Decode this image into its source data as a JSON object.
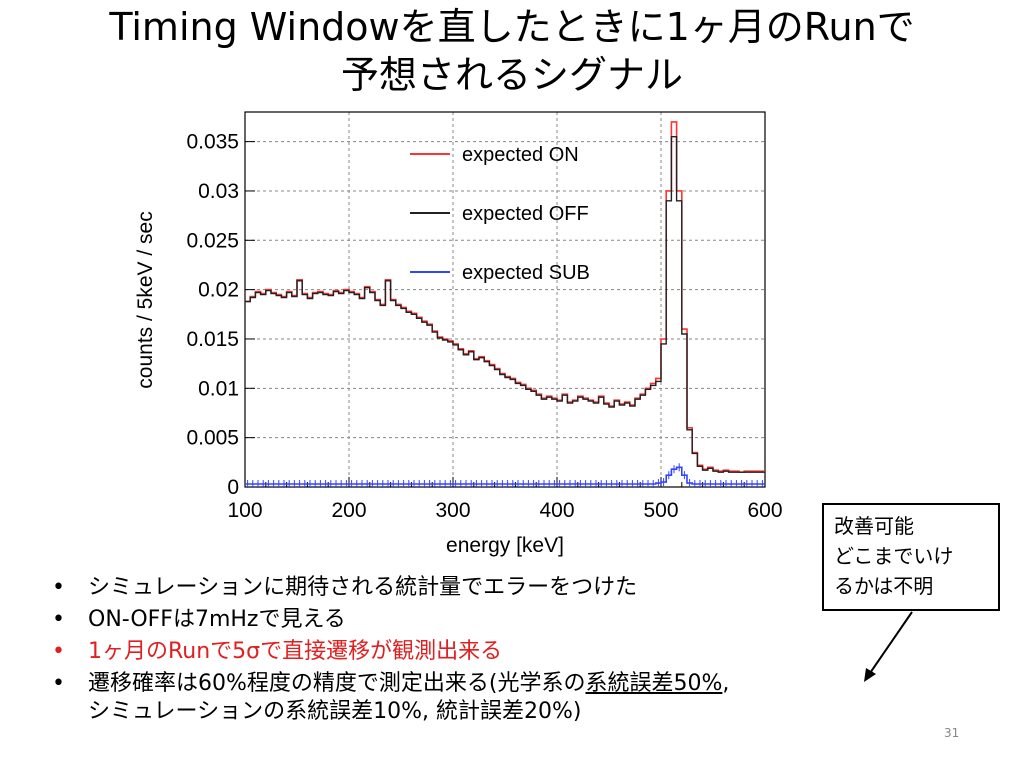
{
  "title": {
    "line1": "Timing Windowを直したときに1ヶ月のRunで",
    "line2": "予想されるシグナル"
  },
  "chart_data": {
    "type": "line",
    "xlabel": "energy [keV]",
    "ylabel": "counts / 5keV / sec",
    "xlim": [
      100,
      600
    ],
    "ylim": [
      0,
      0.038
    ],
    "x_ticks": [
      "100",
      "200",
      "300",
      "400",
      "500",
      "600"
    ],
    "y_ticks": [
      "0",
      "0.005",
      "0.01",
      "0.015",
      "0.02",
      "0.025",
      "0.03",
      "0.035"
    ],
    "grid": true,
    "legend_position": "top-right",
    "x": [
      100,
      105,
      110,
      115,
      120,
      125,
      130,
      135,
      140,
      145,
      150,
      155,
      160,
      165,
      170,
      175,
      180,
      185,
      190,
      195,
      200,
      205,
      210,
      215,
      220,
      225,
      230,
      235,
      240,
      245,
      250,
      255,
      260,
      265,
      270,
      275,
      280,
      285,
      290,
      295,
      300,
      305,
      310,
      315,
      320,
      325,
      330,
      335,
      340,
      345,
      350,
      355,
      360,
      365,
      370,
      375,
      380,
      385,
      390,
      395,
      400,
      405,
      410,
      415,
      420,
      425,
      430,
      435,
      440,
      445,
      450,
      455,
      460,
      465,
      470,
      475,
      480,
      485,
      490,
      495,
      500,
      505,
      510,
      515,
      520,
      525,
      530,
      535,
      540,
      545,
      550,
      555,
      560,
      565,
      570,
      575,
      580,
      585,
      590,
      595,
      600
    ],
    "series": [
      {
        "name": "expected ON",
        "color": "#ff3333",
        "values": [
          0.0188,
          0.0193,
          0.0198,
          0.0196,
          0.02,
          0.0197,
          0.0195,
          0.0193,
          0.0198,
          0.0194,
          0.021,
          0.0196,
          0.0192,
          0.0197,
          0.0198,
          0.0196,
          0.0195,
          0.0199,
          0.0197,
          0.02,
          0.0198,
          0.0196,
          0.0192,
          0.0203,
          0.0198,
          0.019,
          0.0185,
          0.021,
          0.019,
          0.0185,
          0.0182,
          0.0178,
          0.0176,
          0.0172,
          0.0168,
          0.0165,
          0.0158,
          0.0152,
          0.015,
          0.0148,
          0.0145,
          0.014,
          0.0135,
          0.0138,
          0.013,
          0.0132,
          0.0128,
          0.0124,
          0.012,
          0.0115,
          0.0112,
          0.011,
          0.0106,
          0.0104,
          0.01,
          0.0098,
          0.0094,
          0.009,
          0.0092,
          0.009,
          0.0088,
          0.0094,
          0.0086,
          0.0088,
          0.0092,
          0.009,
          0.0088,
          0.0086,
          0.0092,
          0.0085,
          0.0082,
          0.0088,
          0.0084,
          0.0086,
          0.0083,
          0.009,
          0.0094,
          0.01,
          0.0105,
          0.011,
          0.015,
          0.03,
          0.037,
          0.03,
          0.016,
          0.006,
          0.0035,
          0.0022,
          0.0018,
          0.002,
          0.0017,
          0.0016,
          0.0017,
          0.0016,
          0.0016,
          0.0015,
          0.0016,
          0.0016,
          0.0016,
          0.0016,
          0.0016
        ]
      },
      {
        "name": "expected OFF",
        "color": "#222222",
        "values": [
          0.0188,
          0.0192,
          0.0197,
          0.0195,
          0.0199,
          0.0196,
          0.0194,
          0.0192,
          0.0197,
          0.0193,
          0.0209,
          0.0195,
          0.0191,
          0.0196,
          0.0197,
          0.0195,
          0.0194,
          0.0198,
          0.0196,
          0.0199,
          0.0197,
          0.0195,
          0.0191,
          0.0202,
          0.0197,
          0.0189,
          0.0184,
          0.0209,
          0.0189,
          0.0184,
          0.0181,
          0.0177,
          0.0175,
          0.0171,
          0.0167,
          0.0164,
          0.0157,
          0.0151,
          0.0149,
          0.0147,
          0.0144,
          0.0139,
          0.0134,
          0.0137,
          0.0129,
          0.0131,
          0.0127,
          0.0123,
          0.0119,
          0.0114,
          0.0111,
          0.0109,
          0.0105,
          0.0103,
          0.0099,
          0.0097,
          0.0093,
          0.0089,
          0.0091,
          0.0089,
          0.0087,
          0.0093,
          0.0085,
          0.0087,
          0.0091,
          0.0089,
          0.0087,
          0.0085,
          0.0091,
          0.0084,
          0.0081,
          0.0087,
          0.0083,
          0.0085,
          0.0082,
          0.0089,
          0.0093,
          0.0099,
          0.0103,
          0.0107,
          0.0145,
          0.029,
          0.0355,
          0.029,
          0.0155,
          0.0058,
          0.0034,
          0.0021,
          0.0017,
          0.0019,
          0.0016,
          0.0015,
          0.0016,
          0.0015,
          0.0015,
          0.0015,
          0.0015,
          0.0015,
          0.0015,
          0.0015,
          0.0015
        ]
      },
      {
        "name": "expected SUB",
        "color": "#3344ff",
        "values": [
          0.0003,
          0.0003,
          0.0003,
          0.0003,
          0.0003,
          0.0003,
          0.0003,
          0.0003,
          0.0003,
          0.0003,
          0.0003,
          0.0003,
          0.0003,
          0.0003,
          0.0003,
          0.0003,
          0.0003,
          0.0003,
          0.0003,
          0.0003,
          0.0003,
          0.0003,
          0.0003,
          0.0003,
          0.0003,
          0.0003,
          0.0003,
          0.0003,
          0.0003,
          0.0003,
          0.0003,
          0.0003,
          0.0003,
          0.0003,
          0.0003,
          0.0003,
          0.0003,
          0.0003,
          0.0003,
          0.0003,
          0.0003,
          0.0003,
          0.0003,
          0.0003,
          0.0003,
          0.0003,
          0.0003,
          0.0003,
          0.0003,
          0.0003,
          0.0003,
          0.0003,
          0.0003,
          0.0003,
          0.0003,
          0.0003,
          0.0003,
          0.0003,
          0.0003,
          0.0003,
          0.0003,
          0.0003,
          0.0003,
          0.0003,
          0.0003,
          0.0003,
          0.0003,
          0.0003,
          0.0003,
          0.0003,
          0.0003,
          0.0003,
          0.0003,
          0.0003,
          0.0003,
          0.0003,
          0.0003,
          0.0003,
          0.0003,
          0.0004,
          0.0005,
          0.0012,
          0.0018,
          0.002,
          0.0012,
          0.0004,
          0.0003,
          0.0003,
          0.0003,
          0.0003,
          0.0003,
          0.0003,
          0.0003,
          0.0003,
          0.0003,
          0.0003,
          0.0003,
          0.0003,
          0.0003,
          0.0003,
          0.0003
        ]
      }
    ]
  },
  "callout": {
    "line1": "改善可能",
    "line2": "どこまでいけ",
    "line3": "るかは不明"
  },
  "bullets": {
    "b1": "シミュレーションに期待される統計量でエラーをつけた",
    "b2": "ON-OFFは7mHzで見える",
    "b3": "1ヶ月のRunで5σで直接遷移が観測出来る",
    "b4_pre": "遷移確率は60%程度の精度で測定出来る(光学系の",
    "b4_under": "系統誤差50%",
    "b4_post": ",",
    "b4_line2": "シミュレーションの系統誤差10%, 統計誤差20%)"
  },
  "colors": {
    "highlight": "#e02020"
  },
  "page_number": "31"
}
